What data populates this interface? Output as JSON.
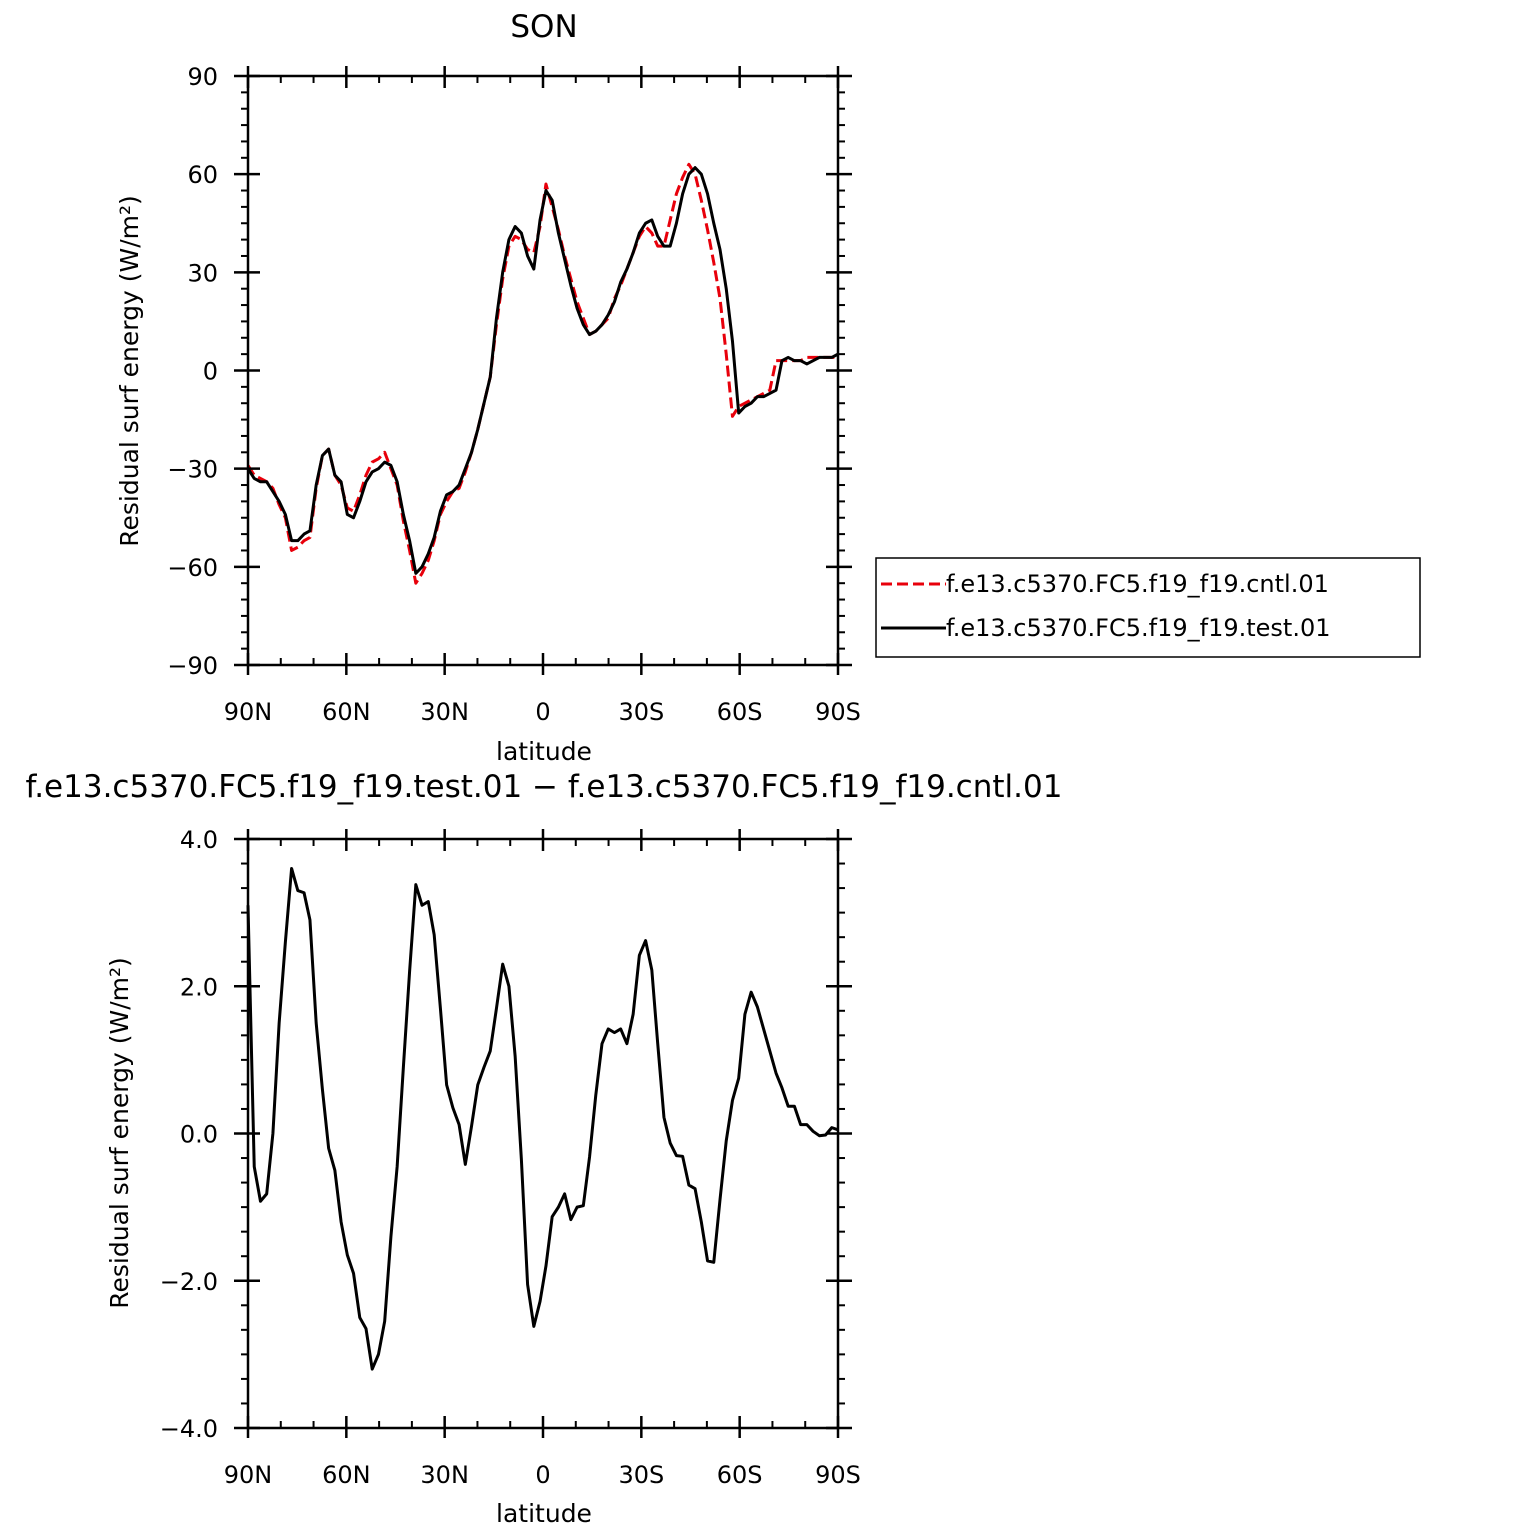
{
  "chart_data": [
    {
      "type": "line",
      "title": "SON",
      "xlabel": "latitude",
      "ylabel": "Residual surf energy (W/m²)",
      "ylim": [
        -90,
        90
      ],
      "xlim": [
        90,
        -90
      ],
      "x_tick_values": [
        90,
        60,
        30,
        0,
        -30,
        -60,
        -90
      ],
      "x_tick_labels": [
        "90N",
        "60N",
        "30N",
        "0",
        "30S",
        "60S",
        "90S"
      ],
      "y_tick_values": [
        90,
        60,
        30,
        0,
        -30,
        -60,
        -90
      ],
      "y_tick_labels": [
        "90",
        "60",
        "30",
        "0",
        "−30",
        "−60",
        "−90"
      ],
      "grid": false,
      "legend_position": "right",
      "series": [
        {
          "name": "f.e13.c5370.FC5.f19_f19.cntl.01",
          "color": "#e8000b",
          "dash": "dashed",
          "x": [
            90,
            88.1,
            86.2,
            84.3,
            82.4,
            80.5,
            78.6,
            76.7,
            74.8,
            72.9,
            71.1,
            69.2,
            67.3,
            65.4,
            63.5,
            61.6,
            59.7,
            57.8,
            55.9,
            54.0,
            52.1,
            50.2,
            48.3,
            46.4,
            44.5,
            42.6,
            40.7,
            38.8,
            36.9,
            35.0,
            33.2,
            31.3,
            29.4,
            27.5,
            25.6,
            23.7,
            21.8,
            19.9,
            18.0,
            16.1,
            14.2,
            12.3,
            10.4,
            8.5,
            6.6,
            4.7,
            2.8,
            0.9,
            -0.9,
            -2.8,
            -4.7,
            -6.6,
            -8.5,
            -10.4,
            -12.3,
            -14.2,
            -16.1,
            -18.0,
            -19.9,
            -21.8,
            -23.7,
            -25.6,
            -27.5,
            -29.4,
            -31.3,
            -33.2,
            -35.0,
            -36.9,
            -38.8,
            -40.7,
            -42.6,
            -44.5,
            -46.4,
            -48.3,
            -50.2,
            -52.1,
            -54.0,
            -55.9,
            -57.8,
            -59.7,
            -61.6,
            -63.5,
            -65.4,
            -67.3,
            -69.2,
            -71.1,
            -72.9,
            -74.8,
            -76.7,
            -78.6,
            -80.5,
            -82.4,
            -84.3,
            -86.2,
            -88.1,
            -90
          ],
          "values": [
            -29,
            -32,
            -33,
            -34,
            -36,
            -41,
            -45,
            -55,
            -54,
            -52,
            -51,
            -36,
            -26,
            -24,
            -32,
            -35,
            -42,
            -43,
            -38,
            -32,
            -28,
            -27,
            -25,
            -30,
            -35,
            -46,
            -55,
            -65,
            -62,
            -58,
            -52,
            -44,
            -40,
            -37,
            -36,
            -31,
            -25,
            -18,
            -10,
            -2,
            14,
            28,
            38,
            41,
            40,
            37,
            36,
            44,
            57,
            50,
            43,
            35,
            28,
            21,
            16,
            11,
            12,
            14,
            16,
            22,
            26,
            31,
            36,
            41,
            44,
            42,
            38,
            38,
            46,
            54,
            59,
            63,
            60,
            52,
            43,
            33,
            22,
            5,
            -14,
            -11,
            -10,
            -9,
            -8,
            -7,
            -6,
            3,
            3,
            3,
            3,
            3,
            4,
            4,
            4,
            4,
            4,
            4
          ]
        },
        {
          "name": "f.e13.c5370.FC5.f19_f19.test.01",
          "color": "#000000",
          "dash": "solid",
          "x": [
            90,
            88.1,
            86.2,
            84.3,
            82.4,
            80.5,
            78.6,
            76.7,
            74.8,
            72.9,
            71.1,
            69.2,
            67.3,
            65.4,
            63.5,
            61.6,
            59.7,
            57.8,
            55.9,
            54.0,
            52.1,
            50.2,
            48.3,
            46.4,
            44.5,
            42.6,
            40.7,
            38.8,
            36.9,
            35.0,
            33.2,
            31.3,
            29.4,
            27.5,
            25.6,
            23.7,
            21.8,
            19.9,
            18.0,
            16.1,
            14.2,
            12.3,
            10.4,
            8.5,
            6.6,
            4.7,
            2.8,
            0.9,
            -0.9,
            -2.8,
            -4.7,
            -6.6,
            -8.5,
            -10.4,
            -12.3,
            -14.2,
            -16.1,
            -18.0,
            -19.9,
            -21.8,
            -23.7,
            -25.6,
            -27.5,
            -29.4,
            -31.3,
            -33.2,
            -35.0,
            -36.9,
            -38.8,
            -40.7,
            -42.6,
            -44.5,
            -46.4,
            -48.3,
            -50.2,
            -52.1,
            -54.0,
            -55.9,
            -57.8,
            -59.7,
            -61.6,
            -63.5,
            -65.4,
            -67.3,
            -69.2,
            -71.1,
            -72.9,
            -74.8,
            -76.7,
            -78.6,
            -80.5,
            -82.4,
            -84.3,
            -86.2,
            -88.1,
            -90
          ],
          "values": [
            -30,
            -33,
            -34,
            -34,
            -37,
            -40,
            -44,
            -52,
            -52,
            -50,
            -49,
            -35,
            -26,
            -24,
            -32,
            -34,
            -44,
            -45,
            -40,
            -34,
            -31,
            -30,
            -28,
            -29,
            -34,
            -44,
            -52,
            -62,
            -60,
            -56,
            -51,
            -43,
            -38,
            -37,
            -35,
            -30,
            -25,
            -18,
            -10,
            -2,
            16,
            30,
            40,
            44,
            42,
            35,
            31,
            46,
            55,
            52,
            42,
            34,
            26,
            19,
            14,
            11,
            12,
            14,
            17,
            21,
            27,
            31,
            36,
            42,
            45,
            46,
            41,
            38,
            38,
            45,
            54,
            60,
            62,
            60,
            54,
            45,
            37,
            25,
            9,
            -13,
            -11,
            -10,
            -8,
            -8,
            -7,
            -6,
            3,
            4,
            3,
            3,
            2,
            3,
            4,
            4,
            4,
            5
          ]
        }
      ]
    },
    {
      "type": "line",
      "title": "f.e13.c5370.FC5.f19_f19.test.01  −  f.e13.c5370.FC5.f19_f19.cntl.01",
      "xlabel": "latitude",
      "ylabel": "Residual surf energy (W/m²)",
      "ylim": [
        -4,
        4
      ],
      "xlim": [
        90,
        -90
      ],
      "x_tick_values": [
        90,
        60,
        30,
        0,
        -30,
        -60,
        -90
      ],
      "x_tick_labels": [
        "90N",
        "60N",
        "30N",
        "0",
        "30S",
        "60S",
        "90S"
      ],
      "y_tick_values": [
        4,
        2,
        0,
        -2,
        -4
      ],
      "y_tick_labels": [
        "4.0",
        "2.0",
        "0.0",
        "−2.0",
        "−4.0"
      ],
      "grid": false,
      "series": [
        {
          "color": "#000000",
          "dash": "solid",
          "x": [
            90,
            88.1,
            86.2,
            84.3,
            82.4,
            80.5,
            78.6,
            76.7,
            74.8,
            72.9,
            71.1,
            69.2,
            67.3,
            65.4,
            63.5,
            61.6,
            59.7,
            57.8,
            55.9,
            54.0,
            52.1,
            50.2,
            48.3,
            46.4,
            44.5,
            42.6,
            40.7,
            38.8,
            36.9,
            35.0,
            33.2,
            31.3,
            29.4,
            27.5,
            25.6,
            23.7,
            21.8,
            19.9,
            18.0,
            16.1,
            14.2,
            12.3,
            10.4,
            8.5,
            6.6,
            4.7,
            2.8,
            0.9,
            -0.9,
            -2.8,
            -4.7,
            -6.6,
            -8.5,
            -10.4,
            -12.3,
            -14.2,
            -16.1,
            -18.0,
            -19.9,
            -21.8,
            -23.7,
            -25.6,
            -27.5,
            -29.4,
            -31.3,
            -33.2,
            -35.0,
            -36.9,
            -38.8,
            -40.7,
            -42.6,
            -44.5,
            -46.4,
            -48.3,
            -50.2,
            -52.1,
            -54.0,
            -55.9,
            -57.8,
            -59.7,
            -61.6,
            -63.5,
            -65.4,
            -67.3,
            -69.2,
            -71.1,
            -72.9,
            -74.8,
            -76.7,
            -78.6,
            -80.5,
            -82.4,
            -84.3,
            -86.2,
            -88.1,
            -90
          ],
          "values": [
            3.1,
            -0.45,
            -0.92,
            -0.82,
            0.0,
            1.5,
            2.6,
            3.6,
            3.3,
            3.27,
            2.9,
            1.5,
            0.6,
            -0.2,
            -0.5,
            -1.2,
            -1.65,
            -1.9,
            -2.5,
            -2.65,
            -3.2,
            -3.0,
            -2.55,
            -1.4,
            -0.45,
            0.9,
            2.2,
            3.38,
            3.1,
            3.15,
            2.7,
            1.7,
            0.66,
            0.35,
            0.12,
            -0.42,
            0.1,
            0.66,
            0.9,
            1.12,
            1.7,
            2.3,
            2.0,
            1.05,
            -0.35,
            -2.05,
            -2.62,
            -2.28,
            -1.8,
            -1.13,
            -1.0,
            -0.82,
            -1.17,
            -1.0,
            -0.98,
            -0.32,
            0.52,
            1.22,
            1.42,
            1.37,
            1.42,
            1.22,
            1.62,
            2.42,
            2.62,
            2.22,
            1.22,
            0.22,
            -0.13,
            -0.3,
            -0.31,
            -0.7,
            -0.75,
            -1.2,
            -1.73,
            -1.75,
            -0.9,
            -0.1,
            0.45,
            0.75,
            1.62,
            1.92,
            1.72,
            1.42,
            1.12,
            0.82,
            0.62,
            0.37,
            0.37,
            0.12,
            0.12,
            0.03,
            -0.03,
            -0.02,
            0.08,
            0.05
          ]
        }
      ]
    }
  ]
}
